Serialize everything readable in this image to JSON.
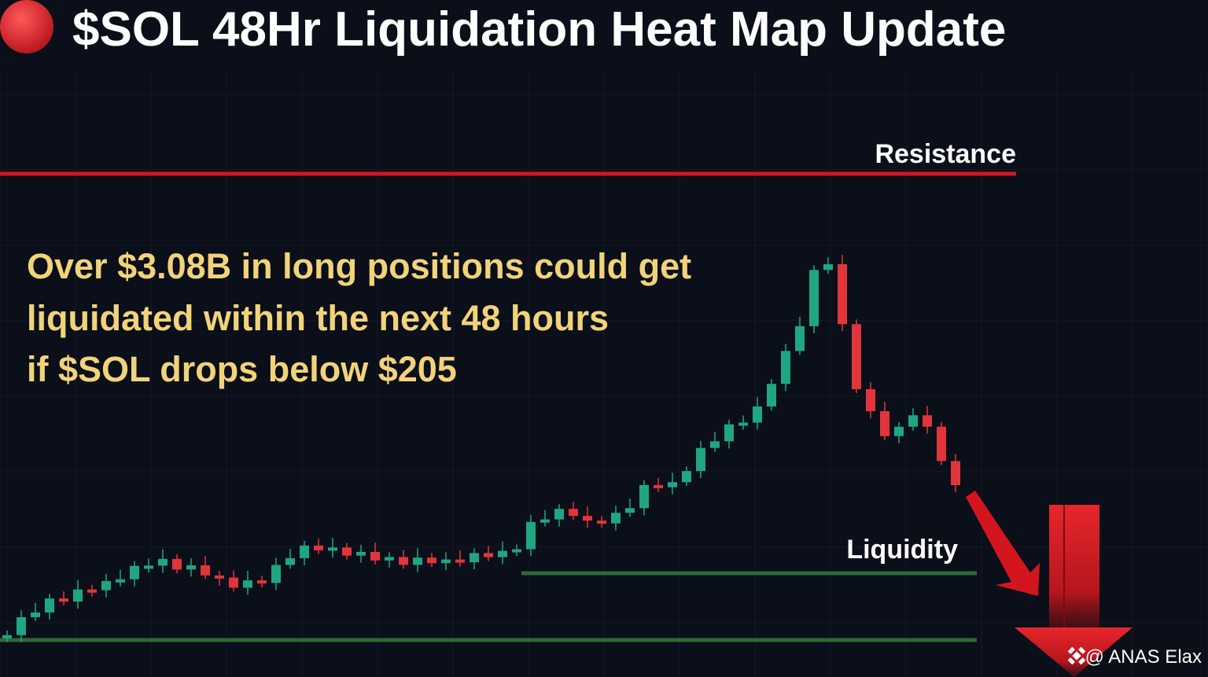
{
  "header": {
    "title": "$SOL 48Hr Liquidation Heat Map Update"
  },
  "labels": {
    "resistance": "Resistance",
    "liquidity": "Liquidity"
  },
  "body": {
    "lines": [
      "Over $3.08B in long positions could get",
      "liquidated within the next 48 hours",
      "if $SOL drops below $205"
    ]
  },
  "watermark": "@ ANAS Elax"
}
